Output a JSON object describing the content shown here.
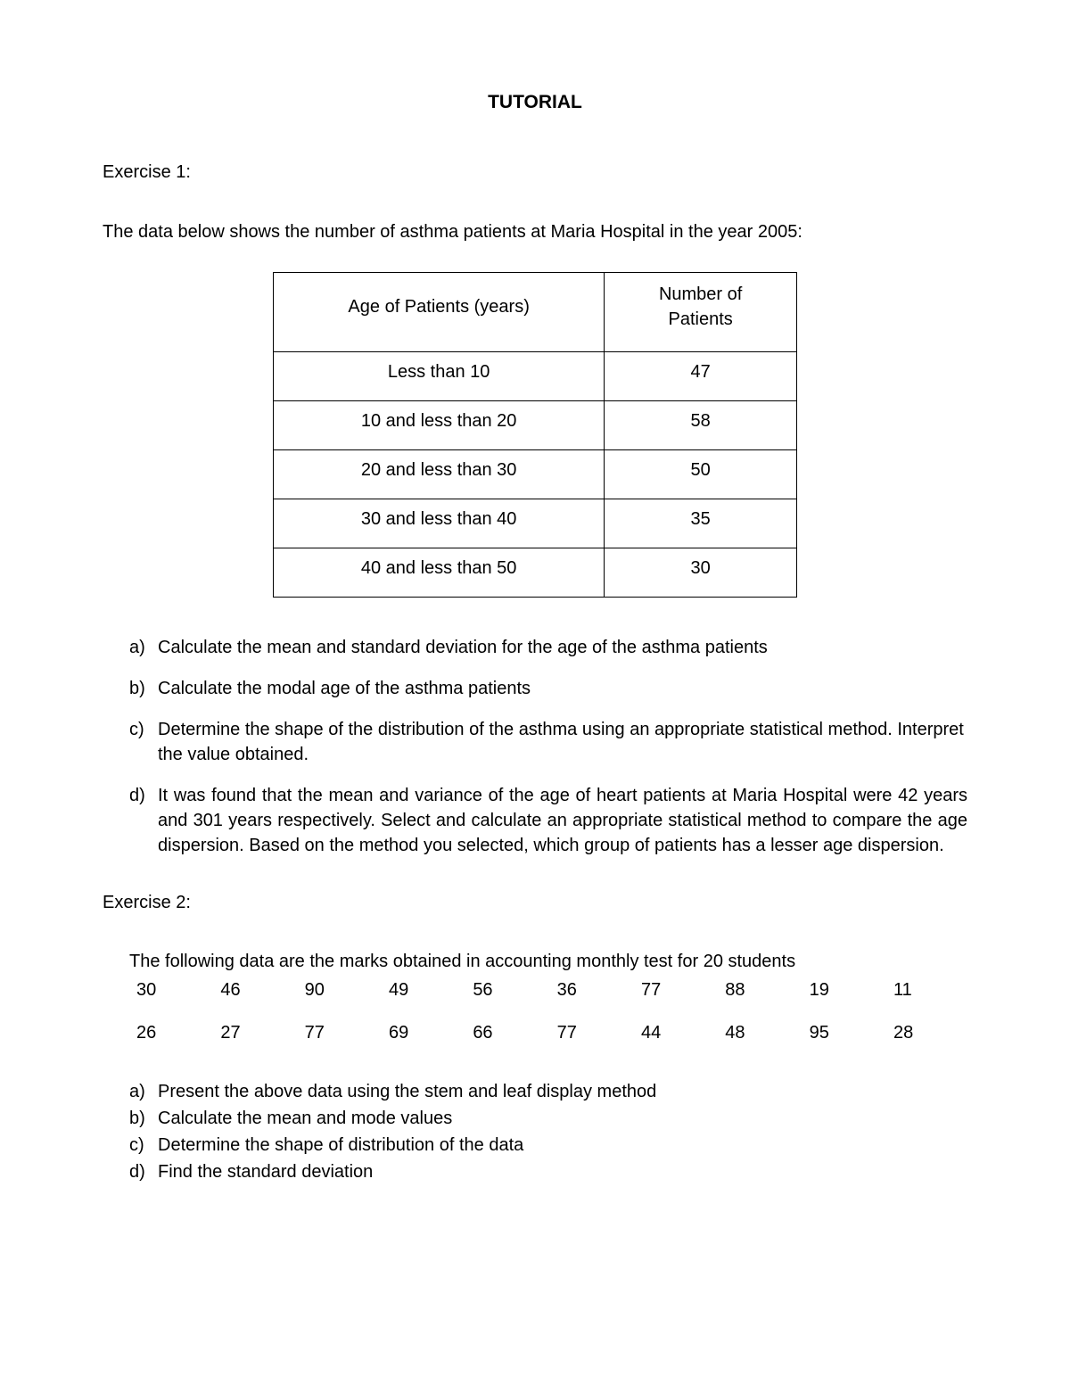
{
  "title": "TUTORIAL",
  "exercise1": {
    "label": "Exercise 1:",
    "intro": "The data below shows the number of asthma patients at Maria Hospital in the year 2005:",
    "table": {
      "header_col1": "Age of Patients (years)",
      "header_col2_line1": "Number of",
      "header_col2_line2": "Patients",
      "rows": [
        {
          "age": "Less than 10",
          "count": "47"
        },
        {
          "age": "10 and less than 20",
          "count": "58"
        },
        {
          "age": "20 and less than 30",
          "count": "50"
        },
        {
          "age": "30 and less than 40",
          "count": "35"
        },
        {
          "age": "40 and less than 50",
          "count": "30"
        }
      ]
    },
    "questions": {
      "a": "Calculate the mean and standard deviation for the age of the asthma patients",
      "b": "Calculate the modal age of the asthma patients",
      "c": "Determine the shape of the distribution of the asthma using an appropriate statistical method. Interpret the value obtained.",
      "d": "It was found that the mean and variance of the age of heart patients at Maria Hospital were 42 years and 301 years respectively. Select and calculate an appropriate statistical method to compare the age dispersion. Based on the method you selected, which group of patients has a lesser age dispersion."
    }
  },
  "exercise2": {
    "label": "Exercise 2:",
    "intro": "The following data are the marks obtained in accounting monthly test for 20 students",
    "row1": [
      "30",
      "46",
      "90",
      "49",
      "56",
      "36",
      "77",
      "88",
      "19",
      "11"
    ],
    "row2": [
      "26",
      "27",
      "77",
      "69",
      "66",
      "77",
      "44",
      "48",
      "95",
      "28"
    ],
    "questions": {
      "a": "Present the above data using the stem and leaf display method",
      "b": "Calculate the mean and mode values",
      "c": "Determine the shape of distribution of the data",
      "d": "Find the standard deviation"
    }
  }
}
